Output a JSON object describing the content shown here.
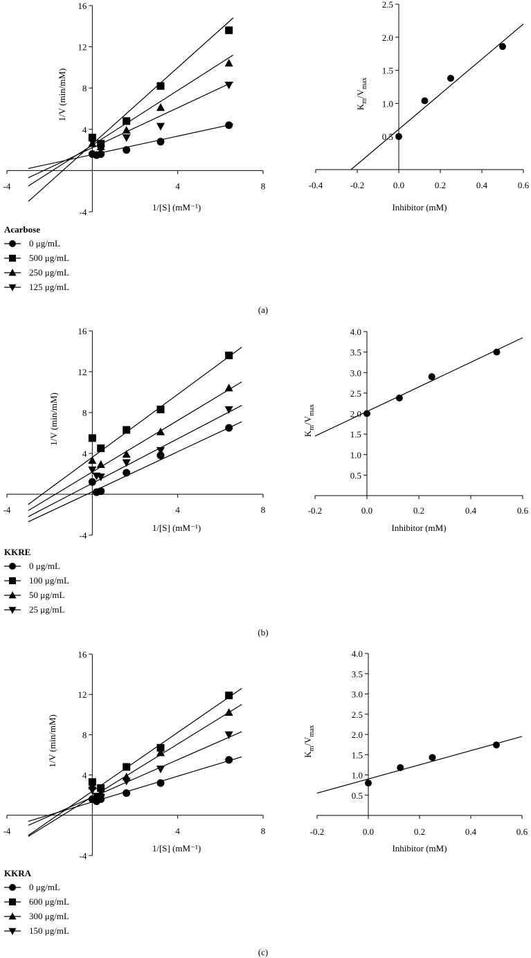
{
  "chart_data": [
    {
      "type": "scatter",
      "panel": "lineweaver-burk",
      "title": "",
      "xlabel": "1/[S] (mM⁻¹)",
      "ylabel": "1/V (min/mM)",
      "xlim": [
        -4,
        8
      ],
      "ylim": [
        -4,
        16
      ],
      "xticks": [
        -4,
        4,
        8
      ],
      "yticks": [
        -4,
        4,
        8,
        12,
        16
      ],
      "xtick_labels": [
        "-4",
        "4",
        "8"
      ],
      "ytick_labels": [
        "-4",
        "4",
        "8",
        "12",
        "16"
      ],
      "legend_title": "Acarbose",
      "series": [
        {
          "name": "0 μg/mL",
          "marker": "circle",
          "x": [
            0,
            0.2,
            0.4,
            1.6,
            3.2,
            6.4
          ],
          "y": [
            1.6,
            1.5,
            1.6,
            2.0,
            2.8,
            4.4
          ],
          "fit": [
            [
              -3,
              0.2
            ],
            [
              6.6,
              4.5
            ]
          ]
        },
        {
          "name": "500 μg/mL",
          "marker": "square",
          "x": [
            0,
            0.4,
            1.6,
            3.2,
            6.4
          ],
          "y": [
            3.2,
            2.6,
            4.8,
            8.2,
            13.6
          ],
          "fit": [
            [
              -3,
              -3.0
            ],
            [
              6.6,
              14.8
            ]
          ]
        },
        {
          "name": "250 μg/mL",
          "marker": "triangle-up",
          "x": [
            0,
            0.4,
            1.6,
            3.2,
            6.4
          ],
          "y": [
            2.6,
            2.3,
            3.9,
            6.1,
            10.4
          ],
          "fit": [
            [
              -3,
              -1.5
            ],
            [
              6.6,
              11.2
            ]
          ]
        },
        {
          "name": "125 μg/mL",
          "marker": "triangle-down",
          "x": [
            0,
            0.4,
            1.6,
            3.2,
            6.4
          ],
          "y": [
            2.8,
            2.1,
            3.2,
            4.3,
            8.3
          ],
          "fit": [
            [
              -3,
              -0.7
            ],
            [
              6.6,
              8.6
            ]
          ]
        }
      ]
    },
    {
      "type": "scatter",
      "panel": "secondary",
      "title": "",
      "xlabel": "Inhibitor (mM)",
      "ylabel_main": "K",
      "ylabel_sub1": "m",
      "ylabel_mid": "/V",
      "ylabel_sub2": "max",
      "xlim": [
        -0.4,
        0.6
      ],
      "ylim": [
        0,
        2.5
      ],
      "xticks": [
        -0.4,
        -0.2,
        0.0,
        0.2,
        0.4,
        0.6
      ],
      "yticks": [
        0.5,
        1.0,
        1.5,
        2.0,
        2.5
      ],
      "xtick_labels": [
        "-0.4",
        "-0.2",
        "0.0",
        "0.2",
        "0.4",
        "0.6"
      ],
      "ytick_labels": [
        "0.5",
        "1.0",
        "1.5",
        "2.0",
        "2.5"
      ],
      "series": [
        {
          "name": "Km/Vmax",
          "marker": "circle",
          "x": [
            0,
            0.125,
            0.25,
            0.5
          ],
          "y": [
            0.5,
            1.04,
            1.38,
            1.86
          ],
          "fit": [
            [
              -0.23,
              0
            ],
            [
              0.6,
              2.2
            ]
          ]
        }
      ]
    },
    {
      "type": "scatter",
      "panel": "lineweaver-burk",
      "title": "",
      "xlabel": "1/[S] (mM⁻¹)",
      "ylabel": "1/V (min/mM)",
      "xlim": [
        -4,
        8
      ],
      "ylim": [
        -4,
        16
      ],
      "xticks": [
        -4,
        4,
        8
      ],
      "yticks": [
        -4,
        4,
        8,
        12,
        16
      ],
      "xtick_labels": [
        "-4",
        "4",
        "8"
      ],
      "ytick_labels": [
        "-4",
        "4",
        "8",
        "12",
        "16"
      ],
      "legend_title": "KKRE",
      "series": [
        {
          "name": "0 μg/mL",
          "marker": "circle",
          "x": [
            0,
            0.2,
            0.4,
            1.6,
            3.2,
            6.4
          ],
          "y": [
            1.2,
            0.2,
            0.3,
            2.1,
            3.8,
            6.5
          ],
          "fit": [
            [
              -3,
              -2.7
            ],
            [
              7,
              7.1
            ]
          ]
        },
        {
          "name": "100 μg/mL",
          "marker": "square",
          "x": [
            0,
            0.4,
            1.6,
            3.2,
            6.4
          ],
          "y": [
            5.5,
            4.5,
            6.3,
            8.3,
            13.6
          ],
          "fit": [
            [
              -3,
              -1.0
            ],
            [
              7,
              14.4
            ]
          ]
        },
        {
          "name": "50 μg/mL",
          "marker": "triangle-up",
          "x": [
            0,
            0.4,
            1.6,
            3.2,
            6.4
          ],
          "y": [
            3.3,
            2.9,
            3.9,
            6.1,
            10.4
          ],
          "fit": [
            [
              -3,
              -1.6
            ],
            [
              7,
              11.0
            ]
          ]
        },
        {
          "name": "25 μg/mL",
          "marker": "triangle-down",
          "x": [
            0,
            0.2,
            0.4,
            1.6,
            3.2,
            6.4
          ],
          "y": [
            2.4,
            1.8,
            1.7,
            3.1,
            4.3,
            8.3
          ],
          "fit": [
            [
              -3,
              -2.2
            ],
            [
              7,
              8.7
            ]
          ]
        }
      ]
    },
    {
      "type": "scatter",
      "panel": "secondary",
      "title": "",
      "xlabel": "Inhibitor (mM)",
      "ylabel_main": "K",
      "ylabel_sub1": "m",
      "ylabel_mid": "/V",
      "ylabel_sub2": "max",
      "xlim": [
        -0.2,
        0.6
      ],
      "ylim": [
        0,
        4.0
      ],
      "xticks": [
        -0.2,
        0.0,
        0.2,
        0.4,
        0.6
      ],
      "yticks": [
        0.5,
        1.0,
        1.5,
        2.0,
        2.5,
        3.0,
        3.5,
        4.0
      ],
      "xtick_labels": [
        "-0.2",
        "0.0",
        "0.2",
        "0.4",
        "0.6"
      ],
      "ytick_labels": [
        "0.5",
        "1.0",
        "1.5",
        "2.0",
        "2.5",
        "3.0",
        "3.5",
        "4.0"
      ],
      "series": [
        {
          "name": "Km/Vmax",
          "marker": "circle",
          "x": [
            0,
            0.125,
            0.25,
            0.5
          ],
          "y": [
            2.0,
            2.38,
            2.9,
            3.5
          ],
          "fit": [
            [
              -0.2,
              1.45
            ],
            [
              0.6,
              3.85
            ]
          ]
        }
      ]
    },
    {
      "type": "scatter",
      "panel": "lineweaver-burk",
      "title": "",
      "xlabel": "1/[S] (mM⁻¹)",
      "ylabel": "1/V (min/mM)",
      "xlim": [
        -4,
        8
      ],
      "ylim": [
        -4,
        16
      ],
      "xticks": [
        -4,
        4,
        8
      ],
      "yticks": [
        -4,
        4,
        8,
        12,
        16
      ],
      "xtick_labels": [
        "-4",
        "4",
        "8"
      ],
      "ytick_labels": [
        "-4",
        "4",
        "8",
        "12",
        "16"
      ],
      "legend_title": "KKRA",
      "series": [
        {
          "name": "0 μg/mL",
          "marker": "circle",
          "x": [
            0,
            0.2,
            0.4,
            1.6,
            3.2,
            6.4
          ],
          "y": [
            1.6,
            1.4,
            1.6,
            2.2,
            3.2,
            5.5
          ],
          "fit": [
            [
              -3,
              -0.6
            ],
            [
              7,
              5.8
            ]
          ]
        },
        {
          "name": "600 μg/mL",
          "marker": "square",
          "x": [
            0,
            0.4,
            1.6,
            3.2,
            6.4
          ],
          "y": [
            3.3,
            2.7,
            4.8,
            6.7,
            11.9
          ],
          "fit": [
            [
              -3,
              -2.0
            ],
            [
              7,
              12.6
            ]
          ]
        },
        {
          "name": "300 μg/mL",
          "marker": "triangle-up",
          "x": [
            0,
            0.4,
            1.6,
            3.2,
            6.4
          ],
          "y": [
            2.9,
            2.2,
            3.8,
            6.2,
            10.2
          ],
          "fit": [
            [
              -3,
              -2.1
            ],
            [
              7,
              11.0
            ]
          ]
        },
        {
          "name": "150 μg/mL",
          "marker": "triangle-down",
          "x": [
            0,
            0.2,
            0.4,
            1.6,
            3.2,
            6.4
          ],
          "y": [
            2.5,
            1.9,
            1.8,
            3.4,
            4.6,
            8.0
          ],
          "fit": [
            [
              -3,
              -1.0
            ],
            [
              7,
              8.3
            ]
          ]
        }
      ]
    },
    {
      "type": "scatter",
      "panel": "secondary",
      "title": "",
      "xlabel": "Inhibitor (mM)",
      "ylabel_main": "K",
      "ylabel_sub1": "m",
      "ylabel_mid": "/V",
      "ylabel_sub2": "max",
      "xlim": [
        -0.2,
        0.6
      ],
      "ylim": [
        0,
        4.0
      ],
      "xticks": [
        -0.2,
        0.0,
        0.2,
        0.4,
        0.6
      ],
      "yticks": [
        0.5,
        1.0,
        1.5,
        2.0,
        2.5,
        3.0,
        3.5,
        4.0
      ],
      "xtick_labels": [
        "-0.2",
        "0.0",
        "0.2",
        "0.4",
        "0.6"
      ],
      "ytick_labels": [
        "0.5",
        "1.0",
        "1.5",
        "2.0",
        "2.5",
        "3.0",
        "3.5",
        "4.0"
      ],
      "series": [
        {
          "name": "Km/Vmax",
          "marker": "circle",
          "x": [
            0,
            0.125,
            0.25,
            0.5
          ],
          "y": [
            0.8,
            1.18,
            1.43,
            1.74
          ],
          "fit": [
            [
              -0.2,
              0.55
            ],
            [
              0.6,
              1.95
            ]
          ]
        }
      ]
    }
  ],
  "panel_labels": [
    "(a)",
    "(b)",
    "(c)"
  ]
}
